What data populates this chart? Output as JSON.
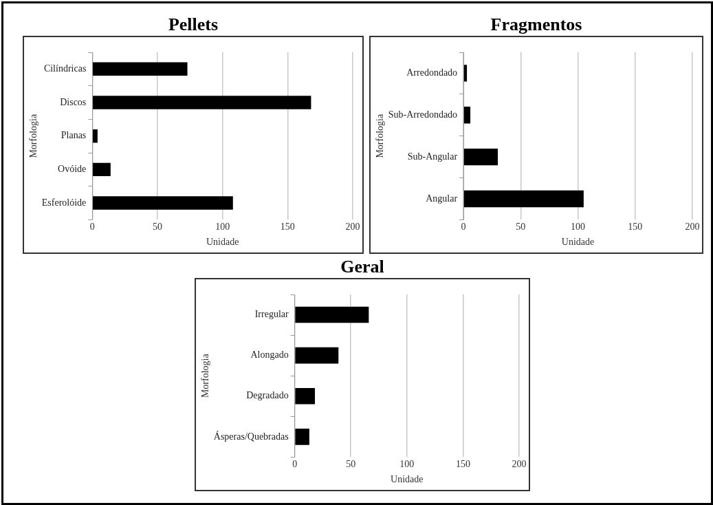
{
  "chart_data": [
    {
      "type": "bar",
      "orientation": "horizontal",
      "title": "Pellets",
      "xlabel": "Unidade",
      "ylabel": "Morfologia",
      "categories": [
        "Cilíndricas",
        "Discos",
        "Planas",
        "Ovóide",
        "Esferolóide"
      ],
      "values": [
        73,
        168,
        4,
        14,
        108
      ],
      "color": "#000000",
      "xlim": [
        0,
        200
      ],
      "xticks": [
        0,
        50,
        100,
        150,
        200
      ],
      "grid": "x",
      "legend": false
    },
    {
      "type": "bar",
      "orientation": "horizontal",
      "title": "Fragmentos",
      "xlabel": "Unidade",
      "ylabel": "Morfologia",
      "categories": [
        "Arredondado",
        "Sub-Arredondado",
        "Sub-Angular",
        "Angular"
      ],
      "values": [
        3,
        6,
        30,
        105
      ],
      "color": "#000000",
      "xlim": [
        0,
        200
      ],
      "xticks": [
        0,
        50,
        100,
        150,
        200
      ],
      "grid": "x",
      "legend": false
    },
    {
      "type": "bar",
      "orientation": "horizontal",
      "title": "Geral",
      "xlabel": "Unidade",
      "ylabel": "Morfologia",
      "categories": [
        "Irregular",
        "Alongado",
        "Degradado",
        "Ásperas/Quebradas"
      ],
      "values": [
        66,
        39,
        18,
        13
      ],
      "color": "#000000",
      "xlim": [
        0,
        200
      ],
      "xticks": [
        0,
        50,
        100,
        150,
        200
      ],
      "grid": "x",
      "legend": false
    }
  ]
}
